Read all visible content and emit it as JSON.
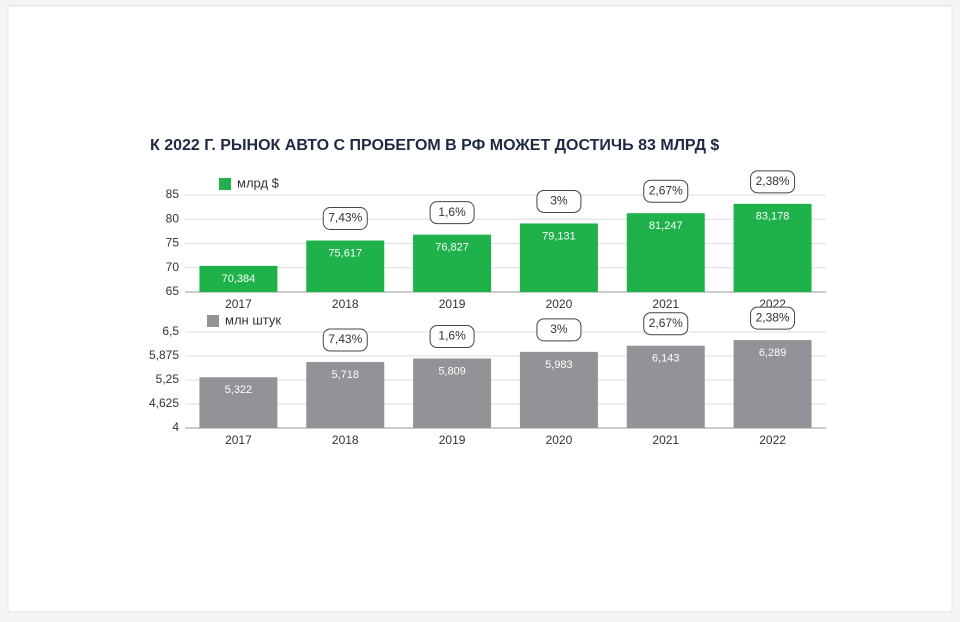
{
  "chart_data": [
    {
      "type": "bar",
      "title": "К 2022 Г. РЫНОК АВТО С ПРОБЕГОМ В РФ МОЖЕТ ДОСТИЧЬ 83 МЛРД $",
      "categories": [
        "2017",
        "2018",
        "2019",
        "2020",
        "2021",
        "2022"
      ],
      "series": [
        {
          "name": "млрд $",
          "color": "#1fb24a",
          "values": [
            70.384,
            75.617,
            76.827,
            79.131,
            81.247,
            83.178
          ],
          "value_labels": [
            "70,384",
            "75,617",
            "76,827",
            "79,131",
            "81,247",
            "83,178"
          ]
        }
      ],
      "annotations": [
        null,
        "7,43%",
        "1,6%",
        "3%",
        "2,67%",
        "2,38%"
      ],
      "ylim": [
        65,
        85
      ],
      "yticks": [
        65,
        70,
        75,
        80,
        85
      ],
      "grid": true
    },
    {
      "type": "bar",
      "categories": [
        "2017",
        "2018",
        "2019",
        "2020",
        "2021",
        "2022"
      ],
      "series": [
        {
          "name": "млн штук",
          "color": "#929297",
          "values": [
            5.322,
            5.718,
            5.809,
            5.983,
            6.143,
            6.289
          ],
          "value_labels": [
            "5,322",
            "5,718",
            "5,809",
            "5,983",
            "6,143",
            "6,289"
          ]
        }
      ],
      "annotations": [
        null,
        "7,43%",
        "1,6%",
        "3%",
        "2,67%",
        "2,38%"
      ],
      "ylim": [
        4,
        6.5
      ],
      "yticks": [
        4,
        {
          "value": 4.625,
          "label": "4,625"
        },
        {
          "value": 5.25,
          "label": "5,25"
        },
        {
          "value": 5.875,
          "label": "5,875"
        },
        {
          "value": 6.5,
          "label": "6,5"
        }
      ],
      "grid": true
    }
  ]
}
